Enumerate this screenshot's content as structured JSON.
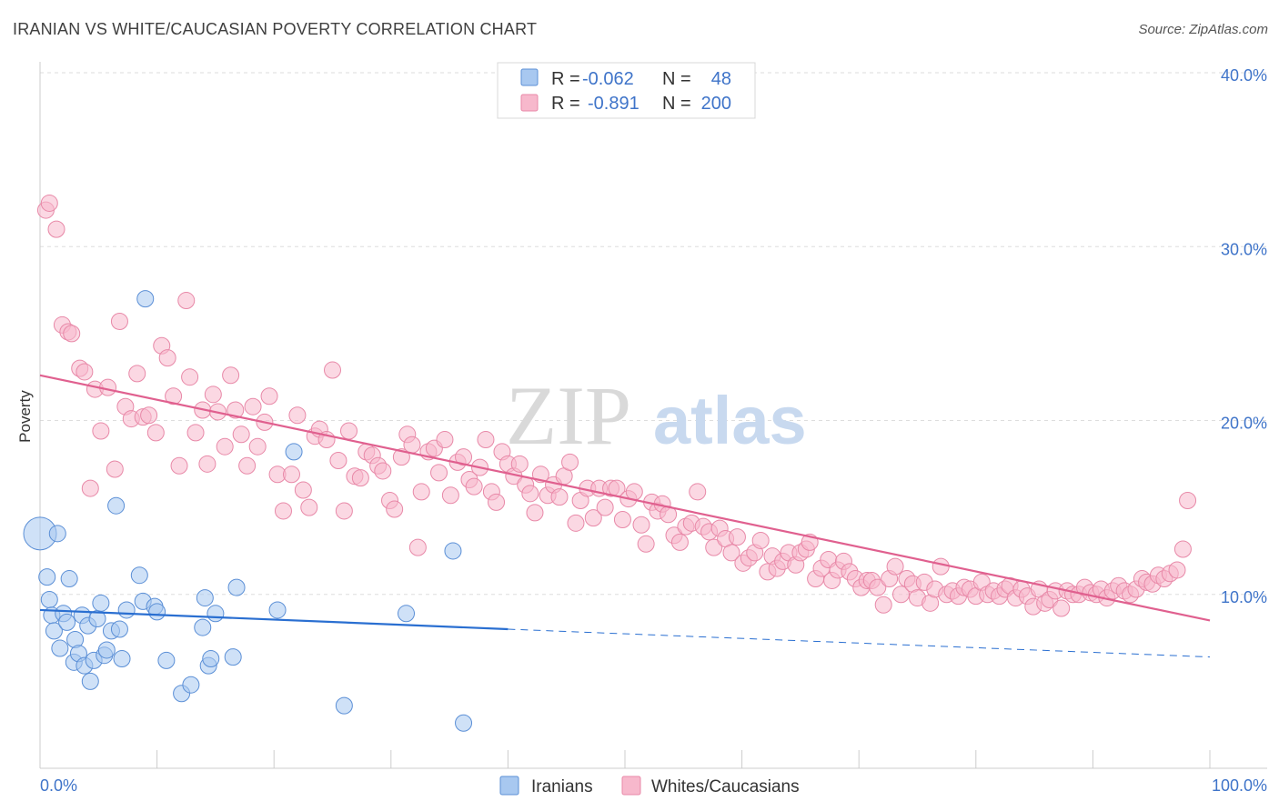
{
  "title": "IRANIAN VS WHITE/CAUCASIAN POVERTY CORRELATION CHART",
  "source": "Source: ZipAtlas.com",
  "watermark": {
    "zip": "ZIP",
    "atlas": "atlas"
  },
  "colors": {
    "iranians_fill": "#a8c8f0",
    "iranians_stroke": "#5b8fd6",
    "iranians_line": "#2a6fd1",
    "whites_fill": "#f7b8cc",
    "whites_stroke": "#e889a8",
    "whites_line": "#e0608f",
    "axis_label": "#3f74c9",
    "grid": "#dddddd"
  },
  "stats_legend": {
    "rows": [
      {
        "r_label": "R =",
        "r_value": "-0.062",
        "n_label": "N =",
        "n_value": "48",
        "series": "Iranians"
      },
      {
        "r_label": "R =",
        "r_value": "-0.891",
        "n_label": "N =",
        "n_value": "200",
        "series": "Whites/Caucasians"
      }
    ]
  },
  "chart_data": {
    "type": "scatter",
    "title": "IRANIAN VS WHITE/CAUCASIAN POVERTY CORRELATION CHART",
    "xlabel": "",
    "ylabel": "Poverty",
    "xlim": [
      0,
      100
    ],
    "ylim": [
      0,
      40
    ],
    "x_tick_labels": [
      "0.0%",
      "100.0%"
    ],
    "y_ticks": [
      10,
      20,
      30,
      40
    ],
    "y_tick_labels": [
      "10.0%",
      "20.0%",
      "30.0%",
      "40.0%"
    ],
    "grid": true,
    "legend_position": "bottom-center",
    "series": [
      {
        "name": "Iranians",
        "points": [
          [
            0.0,
            13.5
          ],
          [
            0.6,
            11.0
          ],
          [
            0.8,
            9.7
          ],
          [
            1.0,
            8.8
          ],
          [
            1.2,
            7.9
          ],
          [
            1.5,
            13.5
          ],
          [
            1.7,
            6.9
          ],
          [
            2.0,
            8.9
          ],
          [
            2.3,
            8.4
          ],
          [
            2.5,
            10.9
          ],
          [
            2.9,
            6.1
          ],
          [
            3.0,
            7.4
          ],
          [
            3.3,
            6.6
          ],
          [
            3.6,
            8.8
          ],
          [
            3.8,
            5.9
          ],
          [
            4.1,
            8.2
          ],
          [
            4.3,
            5.0
          ],
          [
            4.6,
            6.2
          ],
          [
            4.9,
            8.6
          ],
          [
            5.2,
            9.5
          ],
          [
            5.5,
            6.5
          ],
          [
            5.7,
            6.8
          ],
          [
            6.1,
            7.9
          ],
          [
            6.5,
            15.1
          ],
          [
            6.8,
            8.0
          ],
          [
            7.0,
            6.3
          ],
          [
            7.4,
            9.1
          ],
          [
            8.5,
            11.1
          ],
          [
            8.8,
            9.6
          ],
          [
            9.0,
            27.0
          ],
          [
            9.8,
            9.3
          ],
          [
            10.0,
            9.0
          ],
          [
            10.8,
            6.2
          ],
          [
            12.1,
            4.3
          ],
          [
            12.9,
            4.8
          ],
          [
            13.9,
            8.1
          ],
          [
            14.1,
            9.8
          ],
          [
            14.4,
            5.9
          ],
          [
            14.6,
            6.3
          ],
          [
            15.0,
            8.9
          ],
          [
            16.5,
            6.4
          ],
          [
            16.8,
            10.4
          ],
          [
            20.3,
            9.1
          ],
          [
            21.7,
            18.2
          ],
          [
            26.0,
            3.6
          ],
          [
            31.3,
            8.9
          ],
          [
            35.3,
            12.5
          ],
          [
            36.2,
            2.6
          ]
        ]
      },
      {
        "name": "Whites/Caucasians",
        "points": [
          [
            0.5,
            32.1
          ],
          [
            0.8,
            32.5
          ],
          [
            1.4,
            31.0
          ],
          [
            1.9,
            25.5
          ],
          [
            2.4,
            25.1
          ],
          [
            2.7,
            25.0
          ],
          [
            3.4,
            23.0
          ],
          [
            3.8,
            22.8
          ],
          [
            4.3,
            16.1
          ],
          [
            4.7,
            21.8
          ],
          [
            5.2,
            19.4
          ],
          [
            5.8,
            21.9
          ],
          [
            6.4,
            17.2
          ],
          [
            6.8,
            25.7
          ],
          [
            7.3,
            20.8
          ],
          [
            7.8,
            20.1
          ],
          [
            8.3,
            22.7
          ],
          [
            8.8,
            20.2
          ],
          [
            9.3,
            20.3
          ],
          [
            9.9,
            19.3
          ],
          [
            10.4,
            24.3
          ],
          [
            10.9,
            23.6
          ],
          [
            11.4,
            21.4
          ],
          [
            11.9,
            17.4
          ],
          [
            12.5,
            26.9
          ],
          [
            12.8,
            22.5
          ],
          [
            13.3,
            19.3
          ],
          [
            13.9,
            20.6
          ],
          [
            14.3,
            17.5
          ],
          [
            14.8,
            21.5
          ],
          [
            15.2,
            20.5
          ],
          [
            15.8,
            18.5
          ],
          [
            16.3,
            22.6
          ],
          [
            16.7,
            20.6
          ],
          [
            17.2,
            19.2
          ],
          [
            17.7,
            17.4
          ],
          [
            18.2,
            20.8
          ],
          [
            18.6,
            18.5
          ],
          [
            19.2,
            19.9
          ],
          [
            19.6,
            21.4
          ],
          [
            20.3,
            16.9
          ],
          [
            20.8,
            14.8
          ],
          [
            21.5,
            16.9
          ],
          [
            22.0,
            20.3
          ],
          [
            22.5,
            16.0
          ],
          [
            23.0,
            15.0
          ],
          [
            23.5,
            19.1
          ],
          [
            23.9,
            19.5
          ],
          [
            24.5,
            18.9
          ],
          [
            25.0,
            22.9
          ],
          [
            25.5,
            17.7
          ],
          [
            26.0,
            14.8
          ],
          [
            26.4,
            19.4
          ],
          [
            26.9,
            16.8
          ],
          [
            27.4,
            16.7
          ],
          [
            27.9,
            18.2
          ],
          [
            28.4,
            18.0
          ],
          [
            28.9,
            17.4
          ],
          [
            29.3,
            17.1
          ],
          [
            29.9,
            15.4
          ],
          [
            30.3,
            14.9
          ],
          [
            30.9,
            17.9
          ],
          [
            31.4,
            19.2
          ],
          [
            31.8,
            18.6
          ],
          [
            32.3,
            12.7
          ],
          [
            32.6,
            15.9
          ],
          [
            33.2,
            18.2
          ],
          [
            33.7,
            18.4
          ],
          [
            34.1,
            17.0
          ],
          [
            34.6,
            18.9
          ],
          [
            35.1,
            15.7
          ],
          [
            35.7,
            17.6
          ],
          [
            36.2,
            17.9
          ],
          [
            36.7,
            16.6
          ],
          [
            37.1,
            16.2
          ],
          [
            37.6,
            17.3
          ],
          [
            38.1,
            18.9
          ],
          [
            38.6,
            15.9
          ],
          [
            39.0,
            15.3
          ],
          [
            39.5,
            18.2
          ],
          [
            40.0,
            17.5
          ],
          [
            40.5,
            16.8
          ],
          [
            41.0,
            17.5
          ],
          [
            41.5,
            16.3
          ],
          [
            41.9,
            15.8
          ],
          [
            42.3,
            14.7
          ],
          [
            42.8,
            16.9
          ],
          [
            43.4,
            15.7
          ],
          [
            43.9,
            16.3
          ],
          [
            44.4,
            15.6
          ],
          [
            44.8,
            16.8
          ],
          [
            45.3,
            17.6
          ],
          [
            45.8,
            14.1
          ],
          [
            46.2,
            15.4
          ],
          [
            46.8,
            16.1
          ],
          [
            47.3,
            14.4
          ],
          [
            47.8,
            16.1
          ],
          [
            48.3,
            15.0
          ],
          [
            48.8,
            16.1
          ],
          [
            49.3,
            16.1
          ],
          [
            49.8,
            14.3
          ],
          [
            50.3,
            15.5
          ],
          [
            50.8,
            15.9
          ],
          [
            51.4,
            14.0
          ],
          [
            51.8,
            12.9
          ],
          [
            52.3,
            15.3
          ],
          [
            52.8,
            14.8
          ],
          [
            53.2,
            15.2
          ],
          [
            53.7,
            14.6
          ],
          [
            54.2,
            13.4
          ],
          [
            54.7,
            13.0
          ],
          [
            55.2,
            13.9
          ],
          [
            55.7,
            14.1
          ],
          [
            56.2,
            15.9
          ],
          [
            56.7,
            13.9
          ],
          [
            57.2,
            13.6
          ],
          [
            57.6,
            12.7
          ],
          [
            58.1,
            13.8
          ],
          [
            58.6,
            13.2
          ],
          [
            59.1,
            12.4
          ],
          [
            59.6,
            13.3
          ],
          [
            60.1,
            11.8
          ],
          [
            60.6,
            12.1
          ],
          [
            61.1,
            12.4
          ],
          [
            61.6,
            13.1
          ],
          [
            62.2,
            11.3
          ],
          [
            62.6,
            12.2
          ],
          [
            63.0,
            11.5
          ],
          [
            63.5,
            11.9
          ],
          [
            64.0,
            12.4
          ],
          [
            64.6,
            11.7
          ],
          [
            65.0,
            12.4
          ],
          [
            65.5,
            12.6
          ],
          [
            65.8,
            13.0
          ],
          [
            66.3,
            10.9
          ],
          [
            66.8,
            11.5
          ],
          [
            67.4,
            12.0
          ],
          [
            67.7,
            10.8
          ],
          [
            68.2,
            11.4
          ],
          [
            68.7,
            11.9
          ],
          [
            69.2,
            11.3
          ],
          [
            69.7,
            10.9
          ],
          [
            70.2,
            10.4
          ],
          [
            70.7,
            10.8
          ],
          [
            71.1,
            10.8
          ],
          [
            71.6,
            10.4
          ],
          [
            72.1,
            9.4
          ],
          [
            72.6,
            10.9
          ],
          [
            73.1,
            11.6
          ],
          [
            73.6,
            10.0
          ],
          [
            74.1,
            10.9
          ],
          [
            74.6,
            10.6
          ],
          [
            75.0,
            9.8
          ],
          [
            75.6,
            10.7
          ],
          [
            76.1,
            9.5
          ],
          [
            76.5,
            10.3
          ],
          [
            77.0,
            11.6
          ],
          [
            77.5,
            10.0
          ],
          [
            78.0,
            10.2
          ],
          [
            78.5,
            9.9
          ],
          [
            79.0,
            10.4
          ],
          [
            79.5,
            10.3
          ],
          [
            80.0,
            9.9
          ],
          [
            80.5,
            10.7
          ],
          [
            81.0,
            10.0
          ],
          [
            81.5,
            10.2
          ],
          [
            82.0,
            9.9
          ],
          [
            82.5,
            10.3
          ],
          [
            82.9,
            10.5
          ],
          [
            83.4,
            9.8
          ],
          [
            83.9,
            10.3
          ],
          [
            84.4,
            9.9
          ],
          [
            84.9,
            9.3
          ],
          [
            85.4,
            10.3
          ],
          [
            85.9,
            9.5
          ],
          [
            86.3,
            9.7
          ],
          [
            86.8,
            10.2
          ],
          [
            87.3,
            9.2
          ],
          [
            87.8,
            10.2
          ],
          [
            88.3,
            10.0
          ],
          [
            88.8,
            10.0
          ],
          [
            89.3,
            10.4
          ],
          [
            89.8,
            10.1
          ],
          [
            90.3,
            10.0
          ],
          [
            90.7,
            10.3
          ],
          [
            91.2,
            9.8
          ],
          [
            91.7,
            10.2
          ],
          [
            92.2,
            10.5
          ],
          [
            92.7,
            10.2
          ],
          [
            93.2,
            10.0
          ],
          [
            93.7,
            10.3
          ],
          [
            94.2,
            10.9
          ],
          [
            94.6,
            10.7
          ],
          [
            95.1,
            10.6
          ],
          [
            95.6,
            11.1
          ],
          [
            96.1,
            10.9
          ],
          [
            96.6,
            11.2
          ],
          [
            97.2,
            11.4
          ],
          [
            97.7,
            12.6
          ],
          [
            98.1,
            15.4
          ]
        ],
        "trend": {
          "x": [
            0,
            100
          ],
          "y": [
            22.6,
            8.5
          ]
        }
      }
    ],
    "trend_lines": [
      {
        "series": "Iranians",
        "x": [
          0,
          40
        ],
        "y": [
          9.1,
          8.0
        ],
        "dashed_to": [
          100,
          6.4
        ]
      },
      {
        "series": "Whites/Caucasians",
        "x": [
          0,
          100
        ],
        "y": [
          22.6,
          8.5
        ]
      }
    ]
  }
}
